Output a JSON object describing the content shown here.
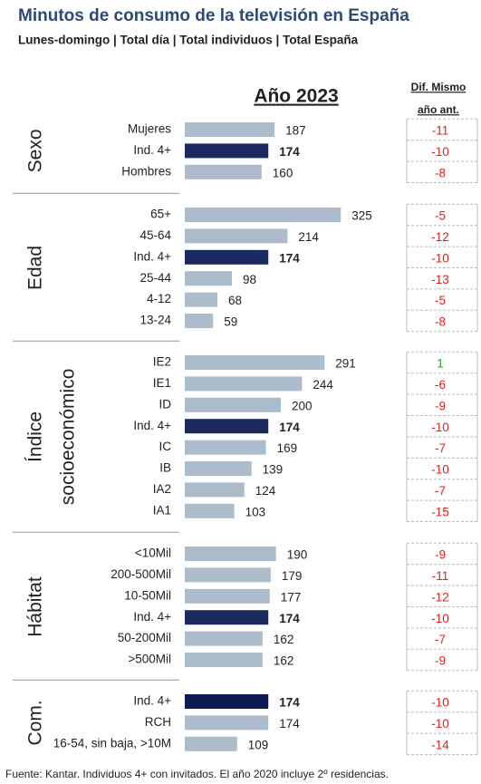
{
  "chart_data": {
    "type": "bar",
    "title": "Minutos de consumo de la televisión en España",
    "subtitle": "Lunes-domingo | Total día | Total individuos | Total España",
    "value_header": "Año 2023",
    "diff_header": [
      "Dif. Mismo",
      "año ant."
    ],
    "footnote": "Fuente: Kantar. Individuos 4+ con invitados. El año 2020 incluye 2º residencias.",
    "xlim": [
      0,
      400
    ],
    "diff_colors": {
      "positive": "#2e9e2e",
      "negative": "#e02020"
    },
    "groups": [
      {
        "label": [
          "Sexo"
        ],
        "categories": [
          "Mujeres",
          "Ind. 4+",
          "Hombres"
        ],
        "values": [
          187,
          174,
          160
        ],
        "diffs": [
          -11,
          -10,
          -8
        ],
        "colors": [
          "#adbccb",
          "#1b2a5e",
          "#adbccb"
        ]
      },
      {
        "label": [
          "Edad"
        ],
        "categories": [
          "65+",
          "45-64",
          "Ind. 4+",
          "25-44",
          "4-12",
          "13-24"
        ],
        "values": [
          325,
          214,
          174,
          98,
          68,
          59
        ],
        "diffs": [
          -5,
          -12,
          -10,
          -13,
          -5,
          -8
        ],
        "colors": [
          "#adbccb",
          "#adbccb",
          "#1b2a5e",
          "#adbccb",
          "#adbccb",
          "#adbccb"
        ]
      },
      {
        "label": [
          "Índice",
          "socioeconómico"
        ],
        "categories": [
          "IE2",
          "IE1",
          "ID",
          "Ind. 4+",
          "IC",
          "IB",
          "IA2",
          "IA1"
        ],
        "values": [
          291,
          244,
          200,
          174,
          169,
          139,
          124,
          103
        ],
        "diffs": [
          1,
          -6,
          -9,
          -10,
          -7,
          -10,
          -7,
          -15
        ],
        "colors": [
          "#adbccb",
          "#adbccb",
          "#adbccb",
          "#1b2a5e",
          "#adbccb",
          "#adbccb",
          "#adbccb",
          "#adbccb"
        ]
      },
      {
        "label": [
          "Hábitat"
        ],
        "categories": [
          "<10Mil",
          "200-500Mil",
          "10-50Mil",
          "Ind. 4+",
          "50-200Mil",
          ">500Mil"
        ],
        "values": [
          190,
          179,
          177,
          174,
          162,
          162
        ],
        "diffs": [
          -9,
          -11,
          -12,
          -10,
          -7,
          -9
        ],
        "colors": [
          "#adbccb",
          "#adbccb",
          "#adbccb",
          "#1b2a5e",
          "#adbccb",
          "#adbccb"
        ]
      },
      {
        "label": [
          "Com."
        ],
        "categories": [
          "Ind. 4+",
          "RCH",
          "16-54, sin baja, >10M"
        ],
        "values": [
          174,
          174,
          109
        ],
        "diffs": [
          -10,
          -10,
          -14
        ],
        "colors": [
          "#0d1a52",
          "#adbccb",
          "#adbccb"
        ]
      }
    ]
  }
}
